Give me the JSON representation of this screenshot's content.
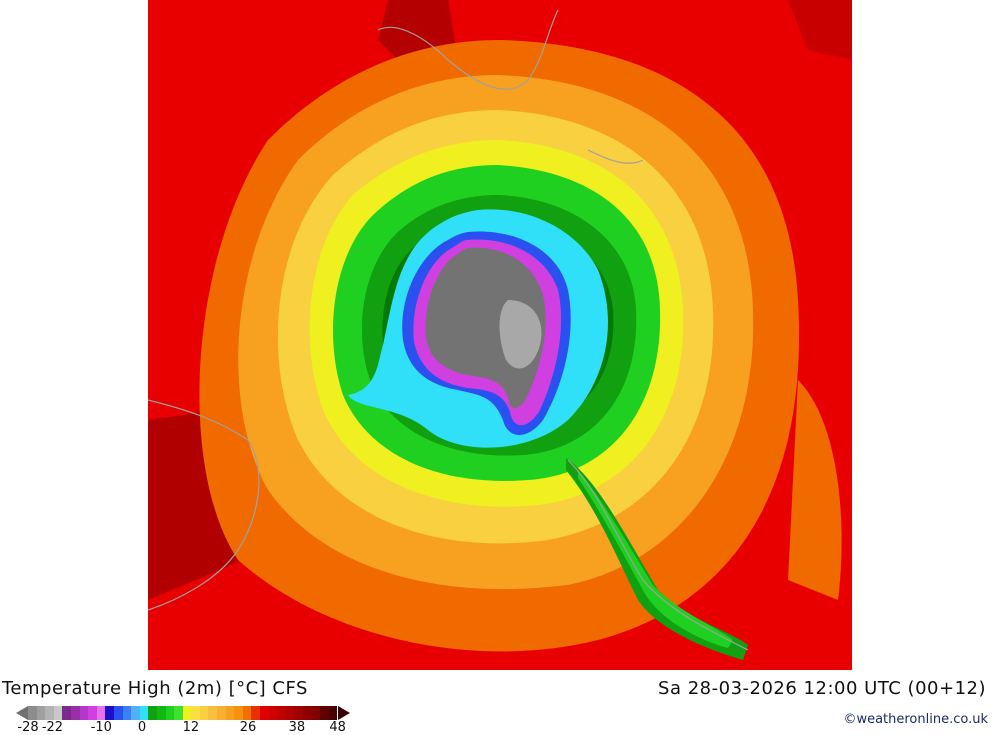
{
  "title": "Temperature High (2m) [°C] CFS",
  "datetime": "Sa 28-03-2026 12:00 UTC (00+12)",
  "credit": "©weatheronline.co.uk",
  "colorbar": {
    "colors": [
      "#8c8c8c",
      "#a0a0a0",
      "#b4b4b4",
      "#c8c8c8",
      "#7a2a8a",
      "#9a30a8",
      "#b438c8",
      "#d040e0",
      "#e870f0",
      "#1a10c8",
      "#2a50f0",
      "#3a80f8",
      "#50b0f8",
      "#30e0f8",
      "#10a010",
      "#12b812",
      "#20d020",
      "#40e030",
      "#f0f020",
      "#f8e040",
      "#f8d040",
      "#f8c040",
      "#f8b030",
      "#f8a020",
      "#f89010",
      "#f07000",
      "#e83000",
      "#e00000",
      "#d00000",
      "#c00000",
      "#b00000",
      "#a00000",
      "#900000",
      "#800000",
      "#600000",
      "#480000"
    ],
    "labels": [
      "-28",
      "-22",
      "-10",
      "0",
      "12",
      "26",
      "38",
      "48"
    ],
    "label_values": [
      -28,
      -22,
      -10,
      0,
      12,
      26,
      38,
      48
    ],
    "min": -28,
    "max": 48,
    "below_color": "#707070",
    "above_color": "#380000"
  }
}
